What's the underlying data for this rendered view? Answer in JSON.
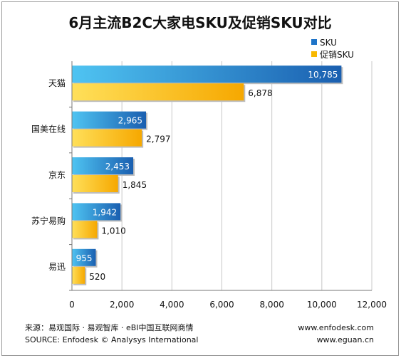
{
  "chart_data": {
    "type": "bar",
    "orientation": "horizontal",
    "title": "6月主流B2C大家电SKU及促销SKU对比",
    "categories": [
      "天猫",
      "国美在线",
      "京东",
      "苏宁易购",
      "易迅"
    ],
    "series": [
      {
        "name": "SKU",
        "values": [
          10785,
          2965,
          2453,
          1942,
          955
        ],
        "labels": [
          "10,785",
          "2,965",
          "2,453",
          "1,942",
          "955"
        ],
        "color": "#1e74c8"
      },
      {
        "name": "促销SKU",
        "values": [
          6878,
          2797,
          1845,
          1010,
          520
        ],
        "labels": [
          "6,878",
          "2,797",
          "1,845",
          "1,010",
          "520"
        ],
        "color": "#f8b800"
      }
    ],
    "xlim": [
      0,
      12000
    ],
    "xticks": [
      0,
      2000,
      4000,
      6000,
      8000,
      10000,
      12000
    ],
    "xtick_labels": [
      "0",
      "2,000",
      "4,000",
      "6,000",
      "8,000",
      "10,000",
      "12,000"
    ],
    "grid": true,
    "legend": "top-right"
  },
  "footer": {
    "source_cn": "来源：易观国际 · 易观智库 · eBI中国互联网商情",
    "source_en": "SOURCE: Enfodesk © Analysys International",
    "url1": "www.enfodesk.com",
    "url2": "www.eguan.cn"
  }
}
